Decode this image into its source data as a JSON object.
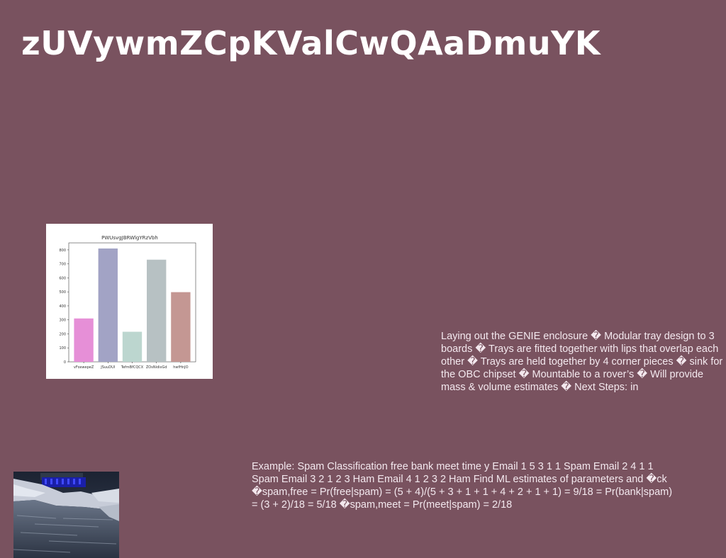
{
  "page": {
    "title": "zUVywmZCpKValCwQAaDmuYK",
    "background_color": "#79525f"
  },
  "text_blocks": {
    "enclosure": "Laying out the GENIE enclosure � Modular tray design to 3 boards � Trays are fitted together with lips that overlap each other � Trays are held together by 4 corner pieces � sink for the OBC chipset � Mountable to a rover’s � Will provide mass & volume estimates � Next Steps: in",
    "spam_example": "Example: Spam Classification free bank meet time y Email 1 5 3 1 1 Spam Email 2 4 1 1 Spam Email 3 2 1 2 3 Ham Email 4 1 2 3 2 Ham Find ML estimates of parameters and �ck �spam,free = Pr(free|spam) = (5 + 4)/(5 + 3 + 1 + 1 + 4 + 2 + 1 + 1) = 9/18 = Pr(bank|spam) = (3 + 2)/18 = 5/18 �spam,meet = Pr(meet|spam) = 2/18"
  },
  "chart_data": {
    "type": "bar",
    "title": "PWUsvgJBRWlgYRzVbh",
    "categories": [
      "vFoxwepeZ",
      "JSuuDUI",
      "TefmBfCQCX",
      "ZOsNidixGd",
      "hwfHnJO"
    ],
    "values": [
      310,
      810,
      215,
      730,
      498
    ],
    "colors": [
      "#e68fd7",
      "#a2a3c5",
      "#bcd6cf",
      "#b7c1c3",
      "#c49793"
    ],
    "ylim": [
      0,
      850
    ],
    "yticks": [
      0,
      100,
      200,
      300,
      400,
      500,
      600,
      700,
      800
    ],
    "xlabel": "",
    "ylabel": "",
    "grid": false
  },
  "photo": {
    "icon": "snowy-river-photo"
  }
}
